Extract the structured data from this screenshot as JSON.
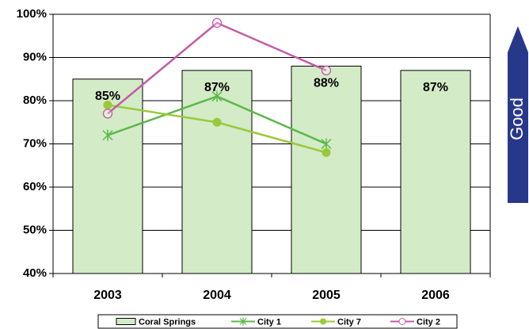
{
  "chart_data": {
    "type": "bar_line",
    "categories": [
      "2003",
      "2004",
      "2005",
      "2006"
    ],
    "series": [
      {
        "name": "Coral Springs",
        "type": "bar",
        "color": "#d3ebc7",
        "values": [
          85,
          87,
          88,
          87
        ],
        "value_labels": [
          "85%",
          "87%",
          "88%",
          "87%"
        ]
      },
      {
        "name": "City 1",
        "type": "line",
        "marker": "star",
        "color": "#5cb84a",
        "values": [
          72,
          81,
          70,
          null
        ]
      },
      {
        "name": "City 7",
        "type": "line",
        "marker": "dot",
        "color": "#99c93a",
        "values": [
          79,
          75,
          68,
          null
        ]
      },
      {
        "name": "City 2",
        "type": "line",
        "marker": "circle",
        "color": "#c45aa6",
        "values": [
          77,
          98,
          87,
          null
        ]
      }
    ],
    "ylim": [
      40,
      100
    ],
    "yticks": [
      {
        "value": 40,
        "label": "40%"
      },
      {
        "value": 50,
        "label": "50%"
      },
      {
        "value": 60,
        "label": "60%"
      },
      {
        "value": 70,
        "label": "70%"
      },
      {
        "value": 80,
        "label": "80%"
      },
      {
        "value": 90,
        "label": "90%"
      },
      {
        "value": 100,
        "label": "100%"
      }
    ],
    "grid": true,
    "legend": "bottom",
    "annotation": "Good"
  }
}
